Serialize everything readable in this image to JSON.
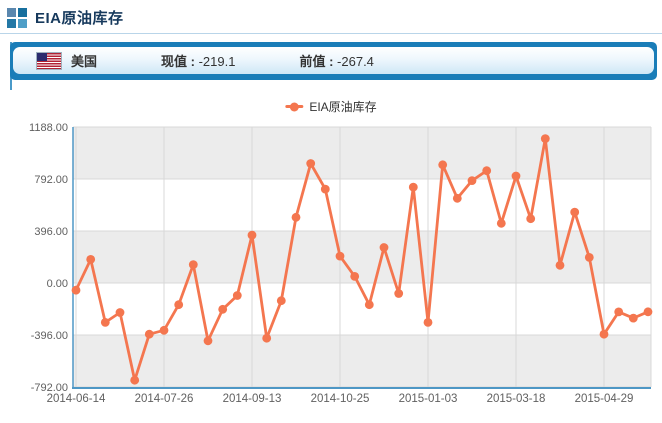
{
  "page": {
    "title": "EIA原油库存"
  },
  "header_bar": {
    "flag_icon": "us-flag",
    "country": "美国",
    "current_label": "现值",
    "previous_label": "前值",
    "separator": " : ",
    "current_value": "-219.1",
    "previous_value": "-267.4"
  },
  "colors": {
    "bar_blue": "#1a7db8",
    "panel_border_blue": "#4a9ac9",
    "series_orange": "#f4764f",
    "band_gray": "#ececec",
    "grid_gray": "#d8d8d8",
    "axis_blue": "#4e97c5",
    "label_gray": "#606060",
    "title_navy": "#16395c"
  },
  "chart_data": {
    "type": "line",
    "legend_label": "EIA原油库存",
    "legend_position": "top-center",
    "series_color": "#f4764f",
    "grid": true,
    "alternating_bands": true,
    "ylim": [
      -792,
      1188
    ],
    "y_ticks": [
      1188,
      792,
      396,
      0,
      -396,
      -792
    ],
    "y_tick_labels": [
      "1188.00",
      "792.00",
      "396.00",
      "0.00",
      "-396.00",
      "-792.00"
    ],
    "x_tick_labels": [
      "2014-06-14",
      "2014-07-26",
      "2014-09-13",
      "2014-10-25",
      "2015-01-03",
      "2015-03-18",
      "2015-04-29"
    ],
    "x_tick_indices": [
      0,
      6,
      12,
      18,
      24,
      30,
      36
    ],
    "values": [
      -55,
      180,
      -300,
      -225,
      -740,
      -390,
      -360,
      -165,
      140,
      -440,
      -200,
      -95,
      365,
      -420,
      -135,
      500,
      910,
      715,
      205,
      50,
      -165,
      270,
      -80,
      730,
      -300,
      900,
      645,
      780,
      855,
      455,
      815,
      490,
      1100,
      135,
      540,
      195,
      -390,
      -220,
      -267.4,
      -219.1
    ]
  }
}
